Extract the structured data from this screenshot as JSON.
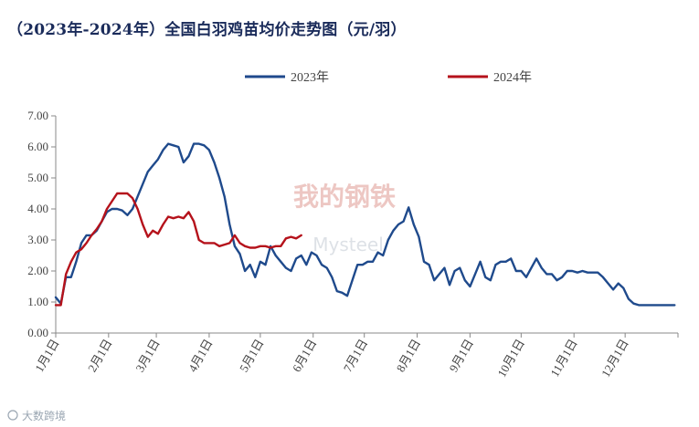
{
  "chart_data": {
    "type": "line",
    "title": "（2023年-2024年）全国白羽鸡苗均价走势图（元/羽）",
    "xlabel": "",
    "ylabel": "",
    "ylim": [
      0,
      7
    ],
    "yticks": [
      "0.00",
      "1.00",
      "2.00",
      "3.00",
      "4.00",
      "5.00",
      "6.00",
      "7.00"
    ],
    "categories": [
      "1月1日",
      "2月1日",
      "3月1日",
      "4月1日",
      "5月1日",
      "6月1日",
      "7月1日",
      "8月1日",
      "9月1日",
      "10月1日",
      "11月1日",
      "12月1日"
    ],
    "legend_position": "top-center",
    "series": [
      {
        "name": "2023年",
        "color": "#1f4a8c",
        "x": [
          0,
          3,
          6,
          9,
          12,
          15,
          18,
          21,
          24,
          27,
          30,
          33,
          36,
          39,
          42,
          45,
          48,
          51,
          54,
          57,
          60,
          63,
          66,
          69,
          72,
          75,
          78,
          81,
          84,
          87,
          90,
          93,
          96,
          99,
          102,
          105,
          108,
          111,
          114,
          117,
          120,
          123,
          126,
          129,
          132,
          135,
          138,
          141,
          144,
          147,
          150,
          153,
          156,
          159,
          162,
          165,
          168,
          171,
          174,
          177,
          180,
          183,
          186,
          189,
          192,
          195,
          198,
          201,
          204,
          207,
          210,
          213,
          216,
          219,
          222,
          225,
          228,
          231,
          234,
          237,
          240,
          243,
          246,
          249,
          252,
          255,
          258,
          261,
          264,
          267,
          270,
          273,
          276,
          279,
          282,
          285,
          288,
          291,
          294,
          297,
          300,
          303,
          306,
          309,
          312,
          315,
          318,
          321,
          324,
          327,
          330,
          333,
          336,
          339,
          342,
          345,
          348,
          351,
          354,
          357,
          360,
          363
        ],
        "values": [
          1.15,
          0.95,
          1.8,
          1.8,
          2.3,
          2.9,
          3.15,
          3.15,
          3.3,
          3.6,
          3.9,
          4.0,
          4.0,
          3.95,
          3.8,
          4.0,
          4.4,
          4.8,
          5.2,
          5.4,
          5.6,
          5.9,
          6.1,
          6.05,
          6.0,
          5.5,
          5.7,
          6.1,
          6.1,
          6.05,
          5.9,
          5.5,
          5.0,
          4.4,
          3.5,
          2.8,
          2.55,
          2.0,
          2.2,
          1.8,
          2.3,
          2.2,
          2.8,
          2.5,
          2.3,
          2.1,
          2.0,
          2.4,
          2.5,
          2.2,
          2.6,
          2.5,
          2.2,
          2.1,
          1.8,
          1.35,
          1.3,
          1.2,
          1.7,
          2.2,
          2.2,
          2.3,
          2.3,
          2.6,
          2.5,
          3.0,
          3.3,
          3.5,
          3.6,
          4.05,
          3.5,
          3.1,
          2.3,
          2.2,
          1.7,
          1.9,
          2.1,
          1.55,
          2.0,
          2.1,
          1.7,
          1.5,
          1.9,
          2.3,
          1.8,
          1.7,
          2.2,
          2.3,
          2.3,
          2.4,
          2.0,
          2.0,
          1.8,
          2.1,
          2.4,
          2.1,
          1.9,
          1.9,
          1.7,
          1.8,
          2.0,
          2.0,
          1.95,
          2.0,
          1.95,
          1.95,
          1.95,
          1.8,
          1.6,
          1.4,
          1.6,
          1.45,
          1.1,
          0.95,
          0.9,
          0.9,
          0.9,
          0.9,
          0.9,
          0.9,
          0.9,
          0.9
        ]
      },
      {
        "name": "2024年",
        "color": "#b5121b",
        "x": [
          0,
          3,
          6,
          9,
          12,
          15,
          18,
          21,
          24,
          27,
          30,
          33,
          36,
          39,
          42,
          45,
          48,
          51,
          54,
          57,
          60,
          63,
          66,
          69,
          72,
          75,
          78,
          81,
          84,
          87,
          90,
          93,
          96,
          99,
          102,
          105,
          108,
          111,
          114,
          117,
          120,
          123,
          126,
          129,
          132,
          135,
          138,
          141,
          144
        ],
        "values": [
          0.9,
          0.9,
          1.9,
          2.3,
          2.6,
          2.7,
          2.9,
          3.15,
          3.35,
          3.6,
          4.0,
          4.25,
          4.5,
          4.5,
          4.5,
          4.35,
          4.0,
          3.5,
          3.1,
          3.3,
          3.2,
          3.5,
          3.75,
          3.7,
          3.75,
          3.7,
          3.9,
          3.6,
          3.0,
          2.9,
          2.9,
          2.9,
          2.8,
          2.85,
          2.9,
          3.15,
          2.9,
          2.8,
          2.75,
          2.75,
          2.8,
          2.8,
          2.75,
          2.8,
          2.8,
          3.05,
          3.1,
          3.05,
          3.15
        ]
      }
    ]
  },
  "watermark": {
    "corner_text": "大数跨境",
    "center_text": "Mysteel",
    "center_logo_chars": "我的钢铁"
  }
}
